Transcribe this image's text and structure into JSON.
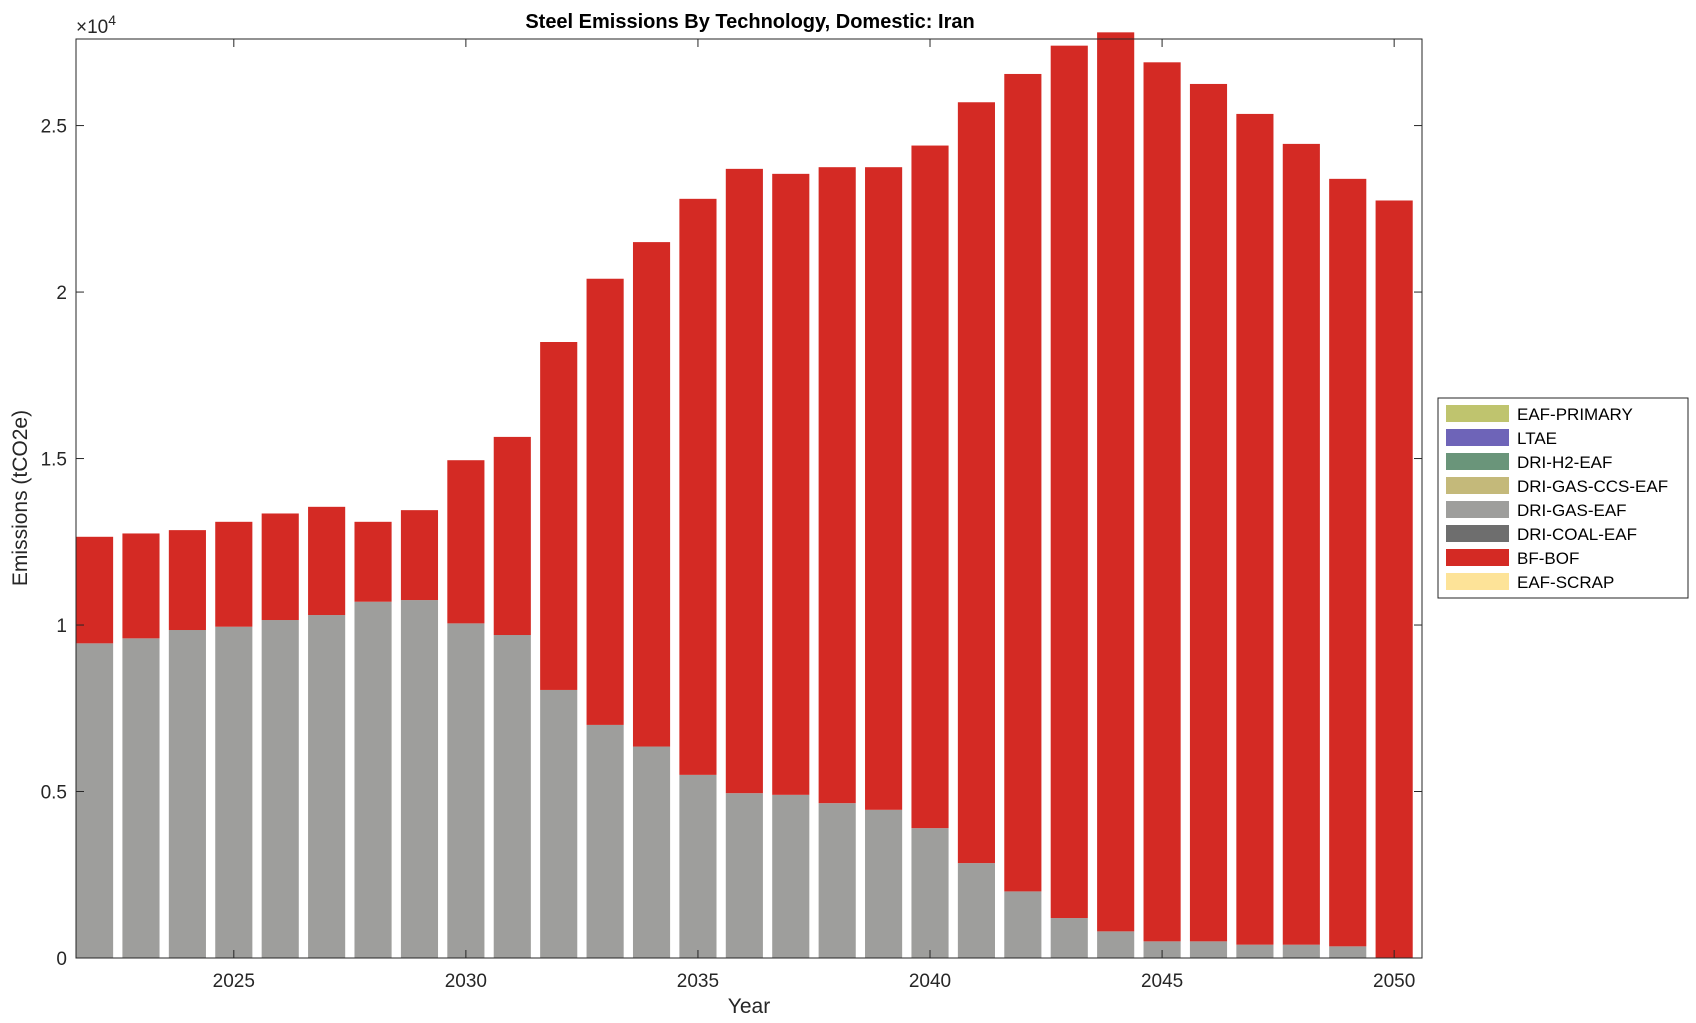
{
  "chart_data": {
    "type": "bar",
    "stacked": true,
    "title": "Steel Emissions By Technology, Domestic: Iran",
    "xlabel": "Year",
    "ylabel": "Emissions (tCO2e)",
    "exponent_label": "×10",
    "exponent_power": "4",
    "x": [
      2022,
      2023,
      2024,
      2025,
      2026,
      2027,
      2028,
      2029,
      2030,
      2031,
      2032,
      2033,
      2034,
      2035,
      2036,
      2037,
      2038,
      2039,
      2040,
      2041,
      2042,
      2043,
      2044,
      2045,
      2046,
      2047,
      2048,
      2049,
      2050
    ],
    "xlim": [
      2021.6,
      2050.6
    ],
    "ylim": [
      0,
      27600
    ],
    "x_ticks": [
      2025,
      2030,
      2035,
      2040,
      2045,
      2050
    ],
    "x_tick_labels": [
      "2025",
      "2030",
      "2035",
      "2040",
      "2045",
      "2050"
    ],
    "y_ticks": [
      0,
      5000,
      10000,
      15000,
      20000,
      25000
    ],
    "y_tick_labels": [
      "0",
      "0.5",
      "1",
      "1.5",
      "2",
      "2.5"
    ],
    "grid": false,
    "legend_position": "outside-right",
    "series": [
      {
        "name": "EAF-PRIMARY",
        "color": "#bfc46e",
        "values": [
          0,
          0,
          0,
          0,
          0,
          0,
          0,
          0,
          0,
          0,
          0,
          0,
          0,
          0,
          0,
          0,
          0,
          0,
          0,
          0,
          0,
          0,
          0,
          0,
          0,
          0,
          0,
          0,
          0
        ]
      },
      {
        "name": "LTAE",
        "color": "#6e64b8",
        "values": [
          0,
          0,
          0,
          0,
          0,
          0,
          0,
          0,
          0,
          0,
          0,
          0,
          0,
          0,
          0,
          0,
          0,
          0,
          0,
          0,
          0,
          0,
          0,
          0,
          0,
          0,
          0,
          0,
          0
        ]
      },
      {
        "name": "DRI-H2-EAF",
        "color": "#6a957a",
        "values": [
          0,
          0,
          0,
          0,
          0,
          0,
          0,
          0,
          0,
          0,
          0,
          0,
          0,
          0,
          0,
          0,
          0,
          0,
          0,
          0,
          0,
          0,
          0,
          0,
          0,
          0,
          0,
          0,
          0
        ]
      },
      {
        "name": "DRI-GAS-CCS-EAF",
        "color": "#c4b97a",
        "values": [
          0,
          0,
          0,
          0,
          0,
          0,
          0,
          0,
          0,
          0,
          0,
          0,
          0,
          0,
          0,
          0,
          0,
          0,
          0,
          0,
          0,
          0,
          0,
          0,
          0,
          0,
          0,
          0,
          0
        ]
      },
      {
        "name": "DRI-GAS-EAF",
        "color": "#9e9e9c",
        "values": [
          9450,
          9600,
          9850,
          9950,
          10150,
          10300,
          10700,
          10750,
          10050,
          9700,
          8050,
          7000,
          6350,
          5500,
          4950,
          4900,
          4650,
          4450,
          3900,
          2850,
          2000,
          1200,
          800,
          500,
          500,
          400,
          400,
          350,
          0
        ]
      },
      {
        "name": "DRI-COAL-EAF",
        "color": "#6e6e6e",
        "values": [
          0,
          0,
          0,
          0,
          0,
          0,
          0,
          0,
          0,
          0,
          0,
          0,
          0,
          0,
          0,
          0,
          0,
          0,
          0,
          0,
          0,
          0,
          0,
          0,
          0,
          0,
          0,
          0,
          0
        ]
      },
      {
        "name": "BF-BOF",
        "color": "#d42a24",
        "values": [
          3200,
          3150,
          3000,
          3150,
          3200,
          3250,
          2400,
          2700,
          4900,
          5950,
          10450,
          13400,
          15150,
          17300,
          18750,
          18650,
          19100,
          19300,
          20500,
          22850,
          24550,
          26200,
          27000,
          26400,
          25750,
          24950,
          24050,
          23050,
          22750
        ]
      },
      {
        "name": "EAF-SCRAP",
        "color": "#fde398",
        "values": [
          0,
          0,
          0,
          0,
          0,
          0,
          0,
          0,
          0,
          0,
          0,
          0,
          0,
          0,
          0,
          0,
          0,
          0,
          0,
          0,
          0,
          0,
          0,
          0,
          0,
          0,
          0,
          0,
          0
        ]
      }
    ]
  }
}
